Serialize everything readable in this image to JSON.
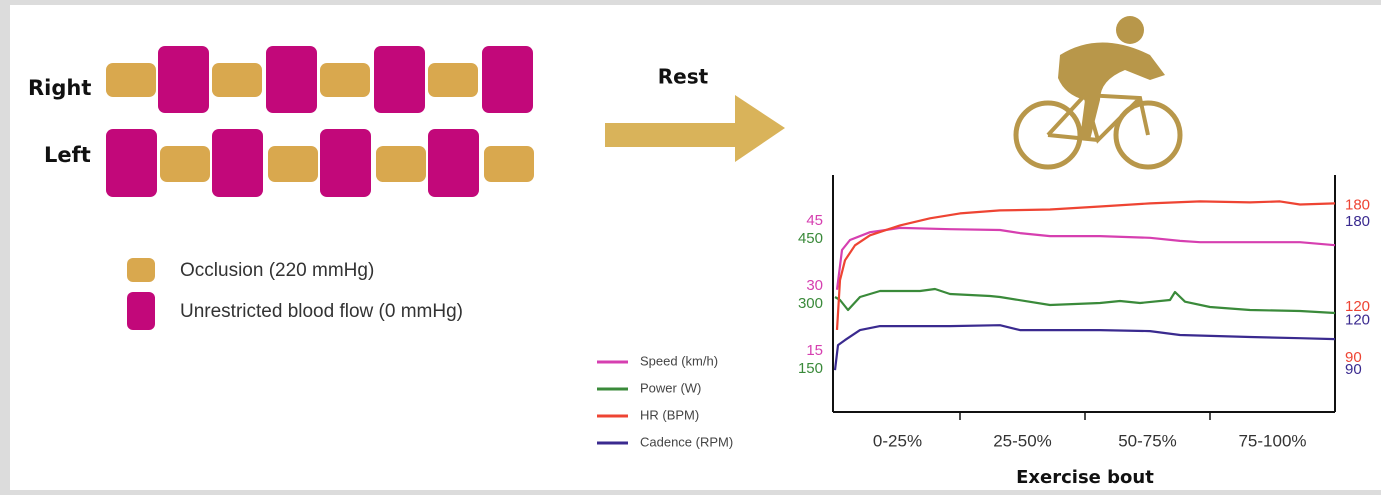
{
  "row_labels": [
    "Right",
    "Left"
  ],
  "legend": [
    "Occlusion (220 mmHg)",
    "Unrestricted blood flow (0 mmHg)"
  ],
  "arrow_label": "Rest",
  "chart_data": {
    "type": "line",
    "x_label": "Exercise bout",
    "categories": [
      "0-25%",
      "25-50%",
      "50-75%",
      "75-100%"
    ],
    "xlim": [
      0,
      100
    ],
    "series": [
      {
        "name": "Speed (km/h)",
        "color": "#d63fb0",
        "axis": "y",
        "ylim": [
          3,
          57.7
        ],
        "yticks": [
          45,
          30,
          15
        ],
        "x": [
          0.4,
          1.4,
          3,
          7,
          13,
          23,
          33,
          37,
          43,
          53,
          63,
          69,
          73,
          83,
          93,
          100
        ],
        "values": [
          31.2,
          40.4,
          42.7,
          44.5,
          45.5,
          45.2,
          45,
          44.3,
          43.6,
          43.6,
          43.2,
          42.5,
          42.2,
          42.2,
          42.2,
          41.5
        ]
      },
      {
        "name": "Power (W)",
        "color": "#3a8a3a",
        "axis": "y",
        "ylim": [
          30,
          577
        ],
        "yticks": [
          450,
          300,
          150
        ],
        "x": [
          0,
          1,
          2.6,
          5,
          9,
          17,
          20,
          23,
          31,
          33,
          43,
          53,
          57,
          61,
          67,
          68,
          70,
          75,
          83,
          93,
          100
        ],
        "values": [
          295.4,
          288.5,
          265.4,
          295.4,
          309.2,
          309.2,
          313.8,
          302.3,
          297.7,
          295.4,
          276.9,
          281.5,
          286.2,
          281.5,
          288.5,
          306.9,
          284.6,
          272.3,
          265.4,
          263.1,
          258.5
        ]
      },
      {
        "name": "HR (BPM)",
        "color": "#ee4433",
        "axis": "y2",
        "ylim": [
          58,
          198
        ],
        "yticks": [
          180,
          120,
          90
        ],
        "x": [
          0.4,
          1,
          2,
          4,
          7,
          13,
          19,
          25,
          33,
          43,
          53,
          63,
          73,
          83,
          89,
          93,
          100
        ],
        "values": [
          106.5,
          135.9,
          147.6,
          156.5,
          162.4,
          168.2,
          172.4,
          175.3,
          177.1,
          177.6,
          179.4,
          181.2,
          182.4,
          181.8,
          182.4,
          180.6,
          181.2
        ]
      },
      {
        "name": "Cadence (RPM)",
        "color": "#3a2a8f",
        "axis": "y2",
        "ylim": [
          64.5,
          208.6
        ],
        "yticks": [
          180,
          120,
          90
        ],
        "x": [
          0,
          0.6,
          2,
          5,
          9,
          23,
          33,
          37,
          53,
          63,
          69,
          83,
          93,
          100
        ],
        "values": [
          90,
          105.2,
          108.2,
          114.3,
          116.7,
          116.7,
          117.3,
          114.3,
          114.3,
          113.7,
          111.3,
          110.1,
          109.4,
          108.8
        ]
      }
    ]
  }
}
